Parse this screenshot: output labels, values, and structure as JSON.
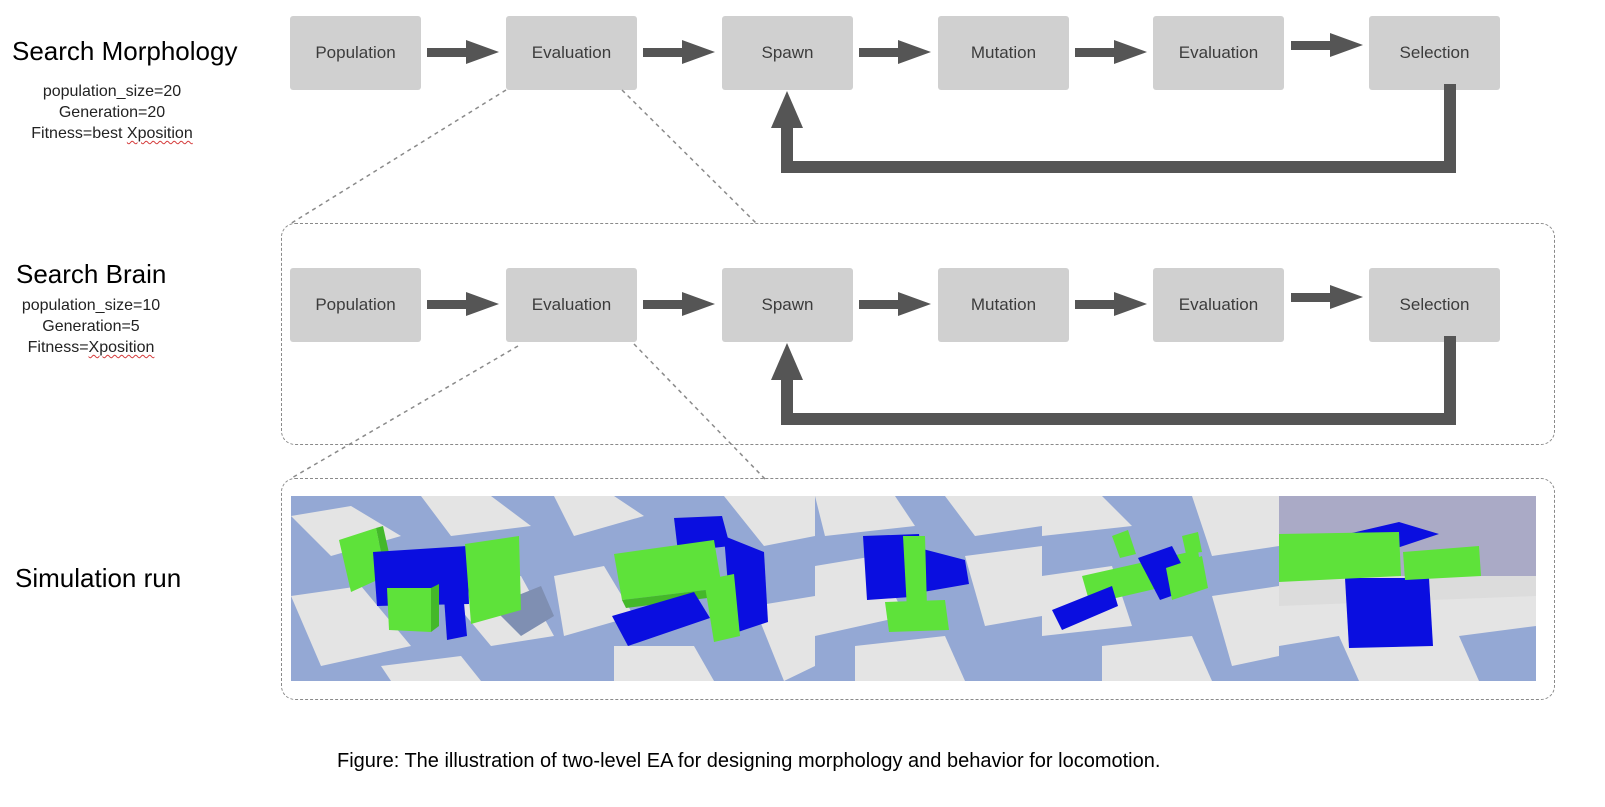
{
  "levels": [
    {
      "title": "Search Morphology",
      "params": [
        "population_size=20",
        "Generation=20",
        "Fitness=best "
      ],
      "params_squiggle": [
        "",
        "",
        "Xposition"
      ],
      "stages": [
        "Population",
        "Evaluation",
        "Spawn",
        "Mutation",
        "Evaluation",
        "Selection"
      ]
    },
    {
      "title": "Search Brain",
      "params": [
        "population_size=10",
        "Generation=5",
        "Fitness="
      ],
      "params_squiggle": [
        "",
        "",
        "Xposition"
      ],
      "stages": [
        "Population",
        "Evaluation",
        "Spawn",
        "Mutation",
        "Evaluation",
        "Selection"
      ]
    }
  ],
  "simulation": {
    "title": "Simulation run",
    "snapshot_count": 5
  },
  "caption": "Figure: The illustration of two-level EA for designing morphology and behavior for locomotion.",
  "colors": {
    "box_fill": "#d0d0d0",
    "box_text": "#3c3c3c",
    "arrow": "#555555",
    "dash": "#8a8a8a",
    "robot_green": "#5ee23a",
    "robot_blue": "#0a0ee0",
    "floor_blue": "#94a8d4",
    "floor_white": "#e4e4e4",
    "sky": "#aaaac6"
  }
}
